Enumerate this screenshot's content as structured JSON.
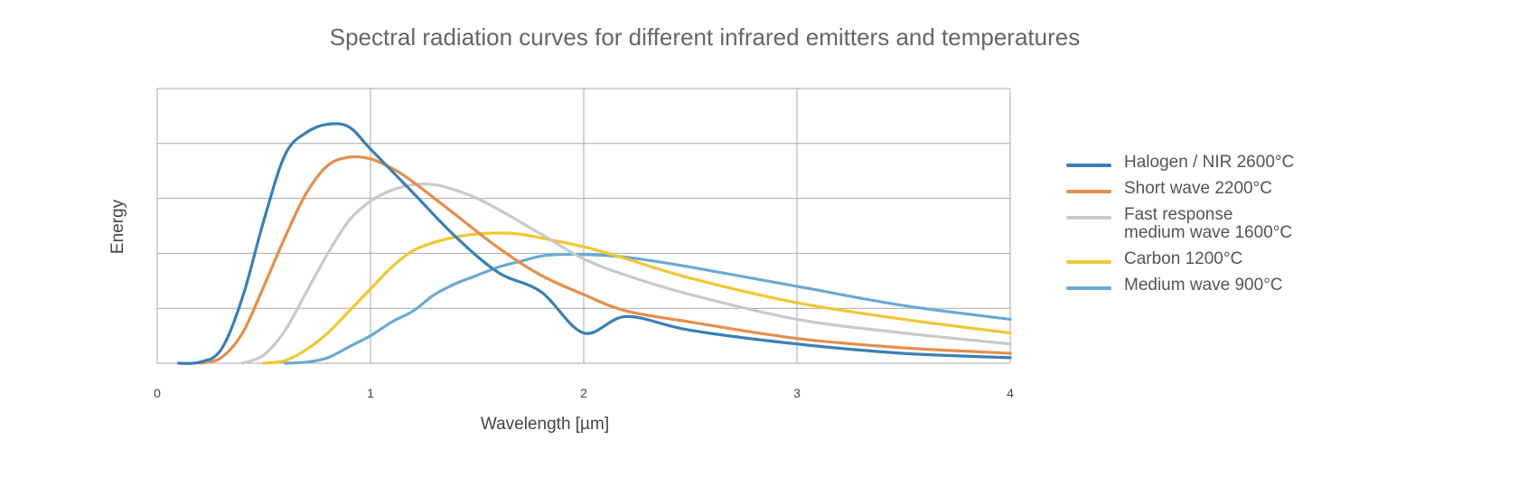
{
  "chart_data": {
    "type": "line",
    "title": "Spectral radiation curves for different infrared emitters and temperatures",
    "xlabel": "Wavelength [µm]",
    "ylabel": "Energy",
    "xlim": [
      0,
      4
    ],
    "ylim": [
      0,
      5
    ],
    "xticks": [
      "0",
      "1",
      "2",
      "3",
      "4"
    ],
    "grid": true,
    "legend_position": "right",
    "series": [
      {
        "name": "Halogen / NIR 2600°C",
        "color": "#3a7fb3",
        "points": [
          [
            0.1,
            0
          ],
          [
            0.2,
            0.02
          ],
          [
            0.3,
            0.25
          ],
          [
            0.4,
            1.2
          ],
          [
            0.5,
            2.6
          ],
          [
            0.6,
            3.8
          ],
          [
            0.7,
            4.2
          ],
          [
            0.8,
            4.35
          ],
          [
            0.9,
            4.3
          ],
          [
            1.0,
            3.9
          ],
          [
            1.2,
            3.1
          ],
          [
            1.4,
            2.3
          ],
          [
            1.6,
            1.65
          ],
          [
            1.8,
            1.3
          ],
          [
            2.0,
            0.55
          ],
          [
            2.2,
            0.85
          ],
          [
            2.5,
            0.6
          ],
          [
            3.0,
            0.35
          ],
          [
            3.5,
            0.18
          ],
          [
            4.0,
            0.1
          ]
        ]
      },
      {
        "name": "Short wave 2200°C",
        "color": "#e58e4a",
        "points": [
          [
            0.2,
            0
          ],
          [
            0.3,
            0.1
          ],
          [
            0.4,
            0.55
          ],
          [
            0.5,
            1.4
          ],
          [
            0.6,
            2.3
          ],
          [
            0.7,
            3.1
          ],
          [
            0.8,
            3.6
          ],
          [
            0.9,
            3.75
          ],
          [
            1.0,
            3.72
          ],
          [
            1.1,
            3.55
          ],
          [
            1.2,
            3.3
          ],
          [
            1.4,
            2.7
          ],
          [
            1.6,
            2.1
          ],
          [
            1.8,
            1.6
          ],
          [
            2.0,
            1.25
          ],
          [
            2.2,
            0.95
          ],
          [
            2.5,
            0.75
          ],
          [
            3.0,
            0.45
          ],
          [
            3.5,
            0.28
          ],
          [
            4.0,
            0.18
          ]
        ]
      },
      {
        "name": "Fast response\nmedium wave 1600°C",
        "color": "#c9c9c9",
        "points": [
          [
            0.4,
            0
          ],
          [
            0.5,
            0.15
          ],
          [
            0.6,
            0.6
          ],
          [
            0.7,
            1.3
          ],
          [
            0.8,
            2.0
          ],
          [
            0.9,
            2.6
          ],
          [
            1.0,
            2.95
          ],
          [
            1.1,
            3.15
          ],
          [
            1.2,
            3.25
          ],
          [
            1.3,
            3.25
          ],
          [
            1.4,
            3.15
          ],
          [
            1.5,
            3.0
          ],
          [
            1.6,
            2.8
          ],
          [
            1.8,
            2.35
          ],
          [
            2.0,
            1.9
          ],
          [
            2.2,
            1.6
          ],
          [
            2.5,
            1.25
          ],
          [
            3.0,
            0.8
          ],
          [
            3.5,
            0.55
          ],
          [
            4.0,
            0.35
          ]
        ]
      },
      {
        "name": "Carbon 1200°C",
        "color": "#f0c733",
        "points": [
          [
            0.5,
            0
          ],
          [
            0.6,
            0.05
          ],
          [
            0.7,
            0.25
          ],
          [
            0.8,
            0.55
          ],
          [
            0.9,
            0.95
          ],
          [
            1.0,
            1.35
          ],
          [
            1.1,
            1.75
          ],
          [
            1.2,
            2.05
          ],
          [
            1.3,
            2.2
          ],
          [
            1.4,
            2.3
          ],
          [
            1.5,
            2.35
          ],
          [
            1.6,
            2.37
          ],
          [
            1.7,
            2.35
          ],
          [
            1.8,
            2.28
          ],
          [
            2.0,
            2.12
          ],
          [
            2.2,
            1.9
          ],
          [
            2.5,
            1.55
          ],
          [
            3.0,
            1.1
          ],
          [
            3.5,
            0.8
          ],
          [
            4.0,
            0.55
          ]
        ]
      },
      {
        "name": "Medium wave 900°C",
        "color": "#6aaad4",
        "points": [
          [
            0.6,
            0
          ],
          [
            0.7,
            0.02
          ],
          [
            0.8,
            0.1
          ],
          [
            0.9,
            0.3
          ],
          [
            1.0,
            0.5
          ],
          [
            1.1,
            0.75
          ],
          [
            1.2,
            0.95
          ],
          [
            1.3,
            1.25
          ],
          [
            1.4,
            1.45
          ],
          [
            1.5,
            1.6
          ],
          [
            1.6,
            1.75
          ],
          [
            1.7,
            1.85
          ],
          [
            1.8,
            1.95
          ],
          [
            1.9,
            1.98
          ],
          [
            2.0,
            1.98
          ],
          [
            2.2,
            1.93
          ],
          [
            2.5,
            1.75
          ],
          [
            3.0,
            1.4
          ],
          [
            3.5,
            1.05
          ],
          [
            4.0,
            0.8
          ]
        ]
      }
    ]
  }
}
